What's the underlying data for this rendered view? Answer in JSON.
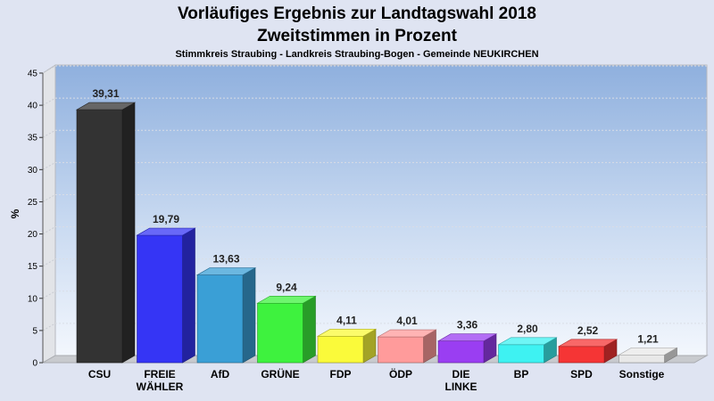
{
  "chart_data": {
    "type": "bar",
    "title_line1": "Vorläufiges Ergebnis zur Landtagswahl 2018",
    "title_line2": "Zweitstimmen in Prozent",
    "subtitle": "Stimmkreis Straubing - Landkreis Straubing-Bogen - Gemeinde NEUKIRCHEN",
    "ylabel": "%",
    "ylim": [
      0,
      45
    ],
    "yticks": [
      0,
      5,
      10,
      15,
      20,
      25,
      30,
      35,
      40,
      45
    ],
    "grid": true,
    "categories": [
      [
        "CSU"
      ],
      [
        "FREIE",
        "WÄHLER"
      ],
      [
        "AfD"
      ],
      [
        "GRÜNE"
      ],
      [
        "FDP"
      ],
      [
        "ÖDP"
      ],
      [
        "DIE",
        "LINKE"
      ],
      [
        "BP"
      ],
      [
        "SPD"
      ],
      [
        "Sonstige"
      ]
    ],
    "values": [
      39.31,
      19.79,
      13.63,
      9.24,
      4.11,
      4.01,
      3.36,
      2.8,
      2.52,
      1.21
    ],
    "value_labels": [
      "39,31",
      "19,79",
      "13,63",
      "9,24",
      "4,11",
      "4,01",
      "3,36",
      "2,80",
      "2,52",
      "1,21"
    ],
    "colors": [
      "#333333",
      "#3535f5",
      "#3a9fd6",
      "#3ef23e",
      "#fafa3a",
      "#ff9b9b",
      "#9a3ef2",
      "#3ef2f2",
      "#f53535",
      "#e8e8e8"
    ]
  }
}
